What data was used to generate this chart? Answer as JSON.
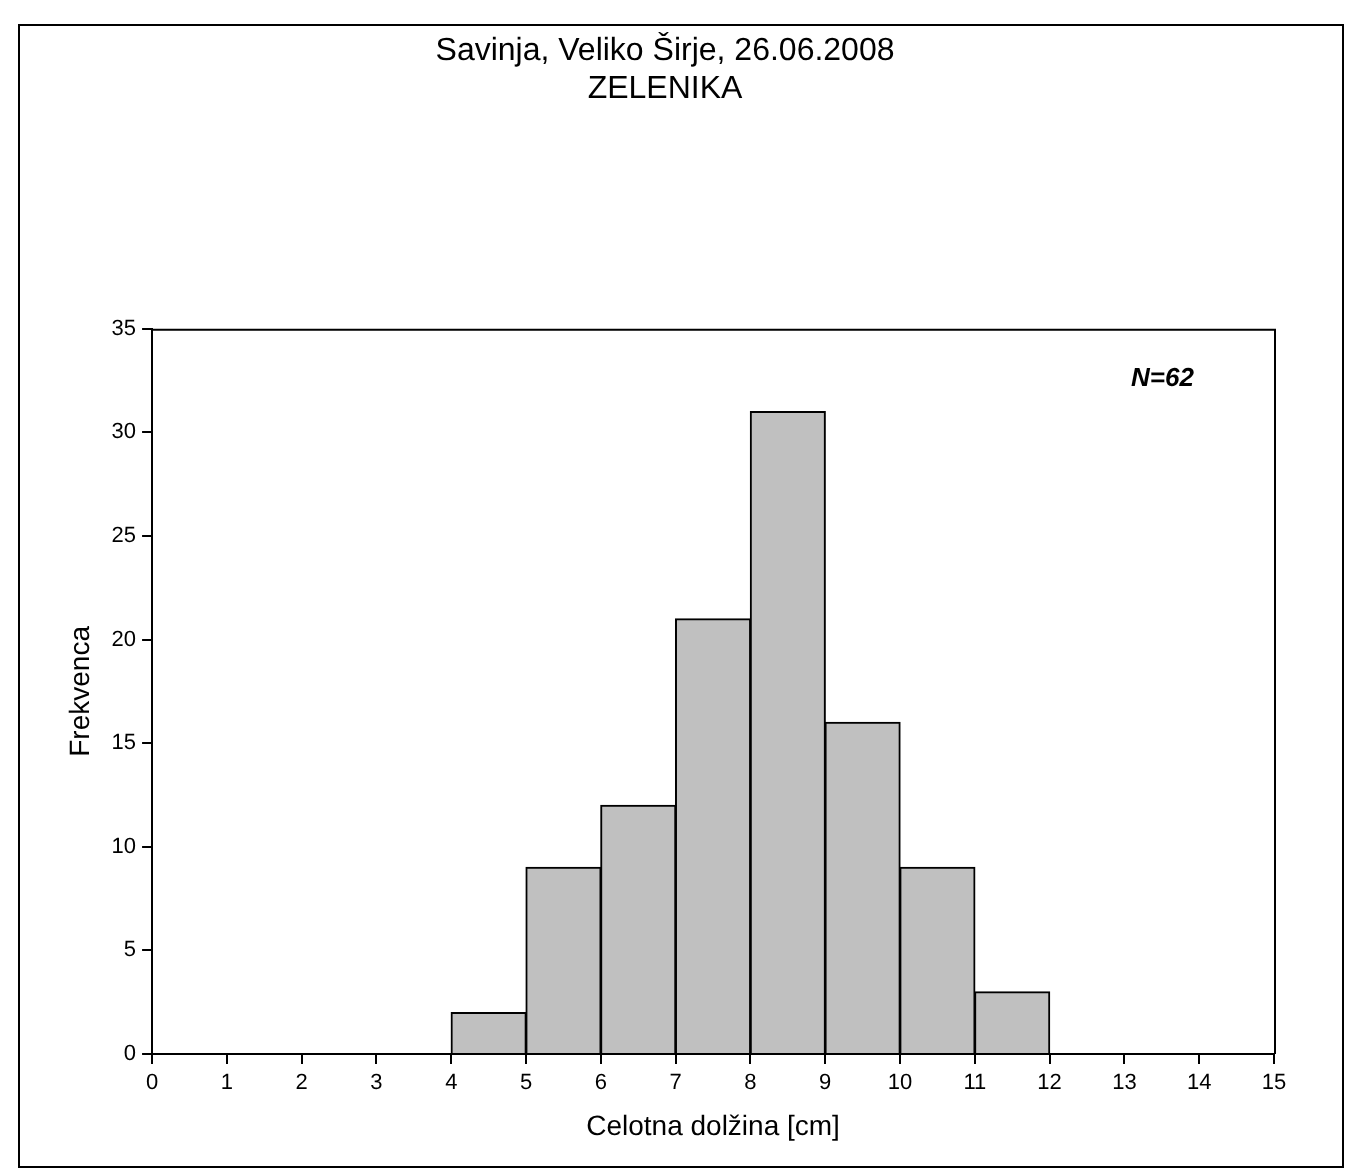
{
  "chart_data": {
    "type": "histogram",
    "title": "Savinja, Veliko Širje, 26.06.2008",
    "subtitle": "ZELENIKA",
    "xlabel": "Celotna dolžina [cm]",
    "ylabel": "Frekvenca",
    "bins": [
      4,
      5,
      6,
      7,
      8,
      9,
      10,
      11,
      12
    ],
    "values": [
      2,
      9,
      12,
      21,
      31,
      16,
      9,
      3
    ],
    "color": "#c0c0c0",
    "xlim": [
      0,
      15
    ],
    "xticks": [
      0,
      1,
      2,
      3,
      4,
      5,
      6,
      7,
      8,
      9,
      10,
      11,
      12,
      13,
      14,
      15
    ],
    "ylim": [
      0,
      35
    ],
    "yticks": [
      0,
      5,
      10,
      15,
      20,
      25,
      30,
      35
    ],
    "grid": false,
    "legend": false,
    "annotations": [
      "N=62"
    ]
  }
}
